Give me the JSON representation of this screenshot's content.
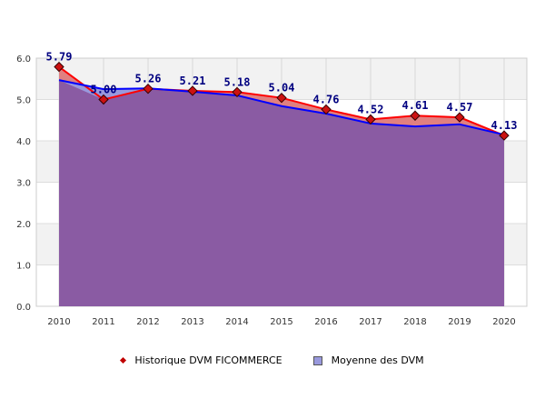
{
  "chart_data": {
    "type": "area",
    "categories": [
      "2010",
      "2011",
      "2012",
      "2013",
      "2014",
      "2015",
      "2016",
      "2017",
      "2018",
      "2019",
      "2020"
    ],
    "series": [
      {
        "name": "Historique DVM FICOMMERCE",
        "values": [
          5.79,
          5.0,
          5.26,
          5.21,
          5.18,
          5.04,
          4.76,
          4.52,
          4.61,
          4.57,
          4.13
        ],
        "color": "#ff0000",
        "fill": "#e08080",
        "marker": "diamond",
        "data_labels": [
          "5.79",
          "5.00",
          "5.26",
          "5.21",
          "5.18",
          "5.04",
          "4.76",
          "4.52",
          "4.61",
          "4.57",
          "4.13"
        ]
      },
      {
        "name": "Moyenne des DVM",
        "values": [
          5.47,
          5.25,
          5.27,
          5.19,
          5.1,
          4.84,
          4.66,
          4.42,
          4.35,
          4.4,
          4.15
        ],
        "color": "#0000ff",
        "fill": "#9999dd"
      }
    ],
    "overlap_fill": "#8a5ba3",
    "ylim": [
      0,
      6
    ],
    "yticks": [
      "0.0",
      "1.0",
      "2.0",
      "3.0",
      "4.0",
      "5.0",
      "6.0"
    ],
    "grid": true,
    "legend": "bottom",
    "xlabel": "",
    "ylabel": ""
  }
}
